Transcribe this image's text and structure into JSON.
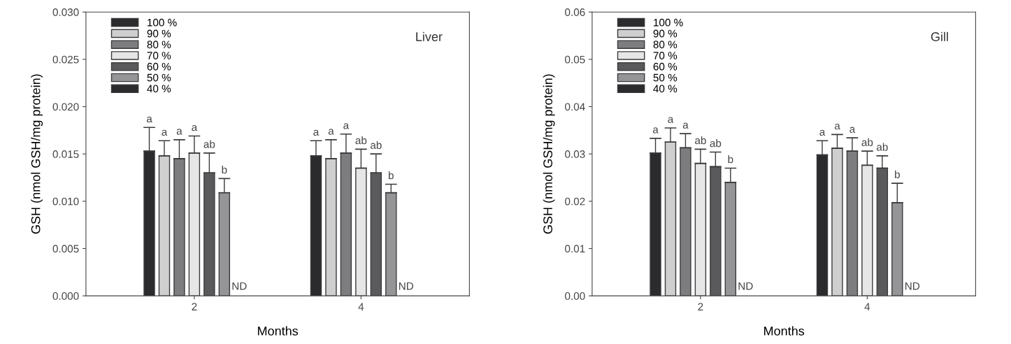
{
  "chart_data": [
    {
      "type": "bar",
      "title": "Liver",
      "xlabel": "Months",
      "ylabel": "GSH (nmol GSH/mg protein)",
      "categories": [
        "2",
        "4"
      ],
      "ylim": [
        0,
        0.03
      ],
      "yticks": [
        {
          "value": 0,
          "label": "0.000"
        },
        {
          "value": 0.005,
          "label": "0.005"
        },
        {
          "value": 0.01,
          "label": "0.010"
        },
        {
          "value": 0.015,
          "label": "0.015"
        },
        {
          "value": 0.02,
          "label": "0.020"
        },
        {
          "value": 0.025,
          "label": "0.025"
        },
        {
          "value": 0.03,
          "label": "0.030"
        }
      ],
      "legend": "top left",
      "grid": false,
      "series": [
        {
          "name": "100 %",
          "color": "#2b2b2e",
          "values": [
            0.0153,
            0.0148
          ],
          "errors": [
            [
              0.0153,
              0.0178
            ],
            [
              0.0148,
              0.0164
            ]
          ]
        },
        {
          "name": "90 %",
          "color": "#cfcfd0",
          "values": [
            0.0148,
            0.0145
          ],
          "errors": [
            [
              0.0148,
              0.0164
            ],
            [
              0.0145,
              0.0165
            ]
          ]
        },
        {
          "name": "80 %",
          "color": "#7d7d80",
          "values": [
            0.0145,
            0.0151
          ],
          "errors": [
            [
              0.0145,
              0.0165
            ],
            [
              0.0151,
              0.0171
            ]
          ]
        },
        {
          "name": "70 %",
          "color": "#e6e6e7",
          "values": [
            0.0151,
            0.0135
          ],
          "errors": [
            [
              0.0151,
              0.0169
            ],
            [
              0.0135,
              0.0155
            ]
          ]
        },
        {
          "name": "60 %",
          "color": "#5a5a5d",
          "values": [
            0.013,
            0.013
          ],
          "errors": [
            [
              0.013,
              0.0151
            ],
            [
              0.013,
              0.015
            ]
          ]
        },
        {
          "name": "50 %",
          "color": "#959597",
          "values": [
            0.0109,
            0.0109
          ],
          "errors": [
            [
              0.0109,
              0.0124
            ],
            [
              0.0109,
              0.0118
            ]
          ]
        },
        {
          "name": "40 %",
          "color": "#2b2b2e",
          "values": [
            null,
            null
          ]
        }
      ],
      "annotations": [
        "a",
        "a",
        "a",
        "a",
        "ab",
        "b",
        "ND",
        "a",
        "a",
        "a",
        "ab",
        "ab",
        "b",
        "ND"
      ]
    },
    {
      "type": "bar",
      "title": "Gill",
      "xlabel": "Months",
      "ylabel": "GSH (nmol GSH/mg protein)",
      "categories": [
        "2",
        "4"
      ],
      "ylim": [
        0,
        0.06
      ],
      "yticks": [
        {
          "value": 0,
          "label": "0.00"
        },
        {
          "value": 0.01,
          "label": "0.01"
        },
        {
          "value": 0.02,
          "label": "0.02"
        },
        {
          "value": 0.03,
          "label": "0.03"
        },
        {
          "value": 0.04,
          "label": "0.04"
        },
        {
          "value": 0.05,
          "label": "0.05"
        },
        {
          "value": 0.06,
          "label": "0.06"
        }
      ],
      "legend": "top left",
      "grid": false,
      "series": [
        {
          "name": "100 %",
          "color": "#2b2b2e",
          "values": [
            0.0302,
            0.0298
          ],
          "errors": [
            [
              0.0302,
              0.0333
            ],
            [
              0.0298,
              0.0328
            ]
          ]
        },
        {
          "name": "90 %",
          "color": "#cfcfd0",
          "values": [
            0.0325,
            0.0312
          ],
          "errors": [
            [
              0.0325,
              0.0355
            ],
            [
              0.0312,
              0.0341
            ]
          ]
        },
        {
          "name": "80 %",
          "color": "#7d7d80",
          "values": [
            0.0313,
            0.0306
          ],
          "errors": [
            [
              0.0313,
              0.0343
            ],
            [
              0.0306,
              0.0334
            ]
          ]
        },
        {
          "name": "70 %",
          "color": "#e6e6e7",
          "values": [
            0.028,
            0.0276
          ],
          "errors": [
            [
              0.028,
              0.031
            ],
            [
              0.0276,
              0.0306
            ]
          ]
        },
        {
          "name": "60 %",
          "color": "#5a5a5d",
          "values": [
            0.0273,
            0.027
          ],
          "errors": [
            [
              0.0273,
              0.0304
            ],
            [
              0.027,
              0.0296
            ]
          ]
        },
        {
          "name": "50 %",
          "color": "#959597",
          "values": [
            0.024,
            0.0197
          ],
          "errors": [
            [
              0.024,
              0.027
            ],
            [
              0.0197,
              0.0238
            ]
          ]
        },
        {
          "name": "40 %",
          "color": "#2b2b2e",
          "values": [
            null,
            null
          ]
        }
      ],
      "annotations": [
        "a",
        "a",
        "a",
        "ab",
        "ab",
        "b",
        "ND",
        "a",
        "a",
        "a",
        "ab",
        "ab",
        "b",
        "ND"
      ]
    }
  ]
}
